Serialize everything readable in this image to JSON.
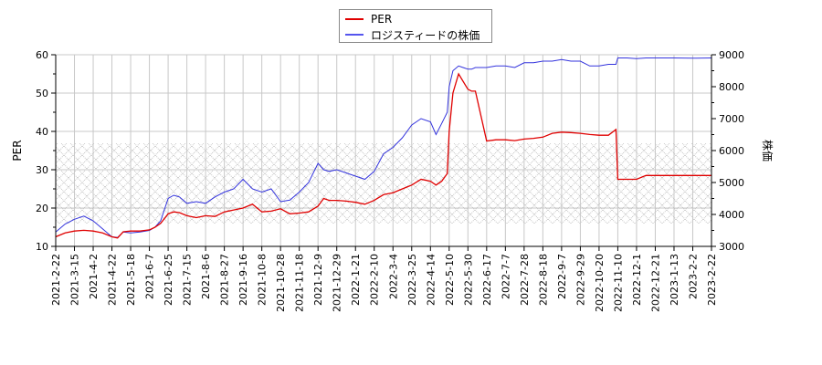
{
  "chart_data": {
    "type": "line",
    "title": "",
    "xlabel": "",
    "ylabel": "PER",
    "y2label": "株価",
    "ylim": [
      10,
      60
    ],
    "y2lim": [
      3000,
      9000
    ],
    "grid": true,
    "legend_position": "top-center",
    "y_ticks": [
      10,
      20,
      30,
      40,
      50,
      60
    ],
    "y2_ticks": [
      3000,
      4000,
      5000,
      6000,
      7000,
      8000,
      9000
    ],
    "x_tick_labels": [
      "2021-2-22",
      "2021-3-15",
      "2021-4-2",
      "2021-4-22",
      "2021-5-18",
      "2021-6-7",
      "2021-6-25",
      "2021-7-15",
      "2021-8-6",
      "2021-8-27",
      "2021-9-16",
      "2021-10-8",
      "2021-10-28",
      "2021-11-18",
      "2021-12-9",
      "2021-12-29",
      "2022-1-21",
      "2022-2-10",
      "2022-3-4",
      "2022-3-25",
      "2022-4-14",
      "2022-5-10",
      "2022-5-30",
      "2022-6-17",
      "2022-7-7",
      "2022-7-28",
      "2022-8-18",
      "2022-9-7",
      "2022-9-29",
      "2022-10-20",
      "2022-11-10",
      "2022-12-1",
      "2022-12-21",
      "2023-1-13",
      "2023-2-2",
      "2023-2-22"
    ],
    "shaded_band": {
      "axis": "left",
      "from": 16,
      "to": 36.9,
      "pattern": "crosshatch",
      "color": "#c8c8c8"
    },
    "series": [
      {
        "name": "PER",
        "axis": "left",
        "color": "#e00000",
        "x_index": [
          0,
          0.5,
          1,
          1.5,
          2,
          2.5,
          3,
          3.3,
          3.6,
          4,
          4.5,
          5,
          5.3,
          5.6,
          6,
          6.3,
          6.6,
          7,
          7.5,
          8,
          8.5,
          9,
          9.5,
          10,
          10.5,
          11,
          11.5,
          12,
          12.5,
          13,
          13.5,
          14,
          14.3,
          14.6,
          15,
          15.5,
          16,
          16.5,
          17,
          17.5,
          18,
          18.5,
          19,
          19.5,
          20,
          20.3,
          20.6,
          20.9,
          21,
          21.2,
          21.5,
          22,
          22.2,
          22.4,
          23,
          23.5,
          24,
          24.5,
          25,
          25.5,
          26,
          26.5,
          27,
          27.5,
          28,
          28.5,
          29,
          29.5,
          29.9,
          30,
          30.1,
          30.5,
          31,
          31.5,
          32,
          33,
          34,
          35
        ],
        "values": [
          12.5,
          13.5,
          14,
          14.2,
          14,
          13.5,
          12.5,
          12.2,
          13.8,
          14,
          14,
          14.3,
          15,
          16,
          18.5,
          19,
          18.8,
          18,
          17.5,
          18,
          17.8,
          19,
          19.5,
          20,
          21,
          19,
          19.2,
          19.8,
          18.5,
          18.7,
          19,
          20.5,
          22.5,
          22,
          22,
          21.8,
          21.5,
          21,
          22,
          23.5,
          24,
          25,
          26,
          27.5,
          27,
          26,
          27,
          29,
          40,
          50,
          55,
          51,
          50.5,
          50.5,
          37.5,
          37.8,
          37.8,
          37.6,
          38,
          38.2,
          38.5,
          39.5,
          39.8,
          39.7,
          39.5,
          39.2,
          39,
          39,
          40.5,
          27.5,
          27.5,
          27.5,
          27.5,
          28.5,
          28.5,
          28.5,
          28.5,
          28.5
        ]
      },
      {
        "name": "ロジスティードの株価",
        "axis": "right",
        "color": "#3333dd",
        "x_index": [
          0,
          0.5,
          1,
          1.5,
          2,
          2.5,
          3,
          3.3,
          3.6,
          4,
          4.5,
          5,
          5.3,
          5.6,
          6,
          6.3,
          6.6,
          7,
          7.5,
          8,
          8.5,
          9,
          9.5,
          10,
          10.5,
          11,
          11.5,
          12,
          12.5,
          13,
          13.5,
          14,
          14.3,
          14.6,
          15,
          15.5,
          16,
          16.5,
          17,
          17.5,
          18,
          18.5,
          19,
          19.5,
          20,
          20.3,
          20.6,
          20.9,
          21,
          21.2,
          21.5,
          22,
          22.2,
          22.4,
          23,
          23.5,
          24,
          24.5,
          25,
          25.5,
          26,
          26.5,
          27,
          27.5,
          28,
          28.5,
          29,
          29.5,
          29.9,
          30,
          30.1,
          30.5,
          31,
          31.5,
          32,
          33,
          34,
          35
        ],
        "values": [
          3450,
          3700,
          3850,
          3950,
          3800,
          3550,
          3300,
          3280,
          3450,
          3420,
          3450,
          3500,
          3600,
          3800,
          4500,
          4600,
          4550,
          4350,
          4400,
          4350,
          4550,
          4700,
          4800,
          5100,
          4800,
          4700,
          4800,
          4400,
          4450,
          4700,
          5000,
          5600,
          5400,
          5350,
          5400,
          5300,
          5200,
          5100,
          5350,
          5900,
          6100,
          6400,
          6800,
          7000,
          6900,
          6500,
          6850,
          7200,
          8000,
          8500,
          8650,
          8550,
          8550,
          8600,
          8600,
          8650,
          8650,
          8600,
          8750,
          8750,
          8800,
          8800,
          8850,
          8800,
          8800,
          8650,
          8650,
          8700,
          8700,
          8900,
          8900,
          8900,
          8880,
          8900,
          8900,
          8900,
          8890,
          8900
        ]
      }
    ]
  },
  "legend": {
    "items": [
      {
        "label": "PER",
        "color": "#e00000"
      },
      {
        "label": "ロジスティードの株価",
        "color": "#3333dd"
      }
    ]
  }
}
